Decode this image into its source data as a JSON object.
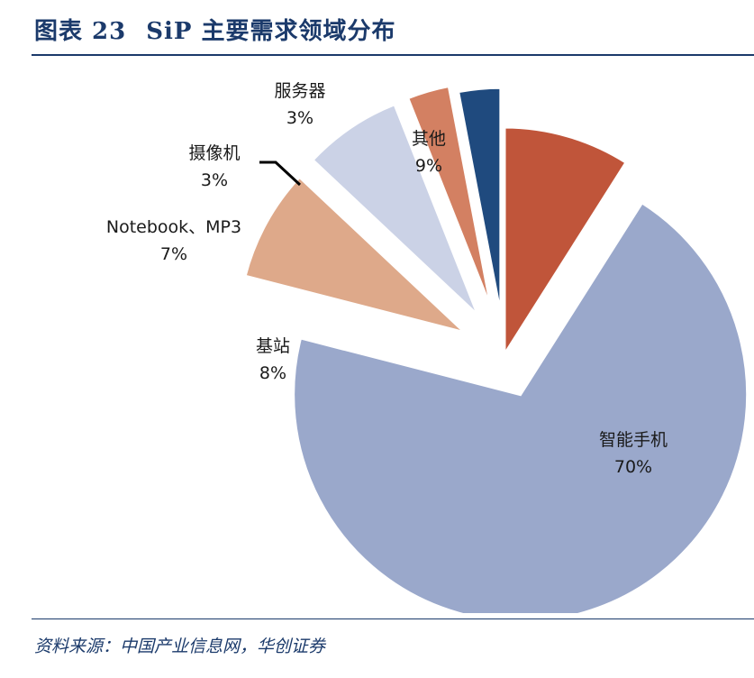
{
  "header": {
    "figure_label": "图表 23",
    "title": "SiP 主要需求领域分布"
  },
  "footer": {
    "source": "资料来源：中国产业信息网，华创证券"
  },
  "chart_data": {
    "type": "pie",
    "title": "SiP 主要需求领域分布",
    "exploded": true,
    "slices": [
      {
        "label": "其他",
        "value": 9,
        "value_label": "9%",
        "color": "#c0553a"
      },
      {
        "label": "智能手机",
        "value": 70,
        "value_label": "70%",
        "color": "#9aa8cb"
      },
      {
        "label": "基站",
        "value": 8,
        "value_label": "8%",
        "color": "#dea98a"
      },
      {
        "label": "Notebook、MP3",
        "value": 7,
        "value_label": "7%",
        "color": "#cbd2e6"
      },
      {
        "label": "摄像机",
        "value": 3,
        "value_label": "3%",
        "color": "#d38062"
      },
      {
        "label": "服务器",
        "value": 3,
        "value_label": "3%",
        "color": "#1f4a7e"
      }
    ]
  }
}
